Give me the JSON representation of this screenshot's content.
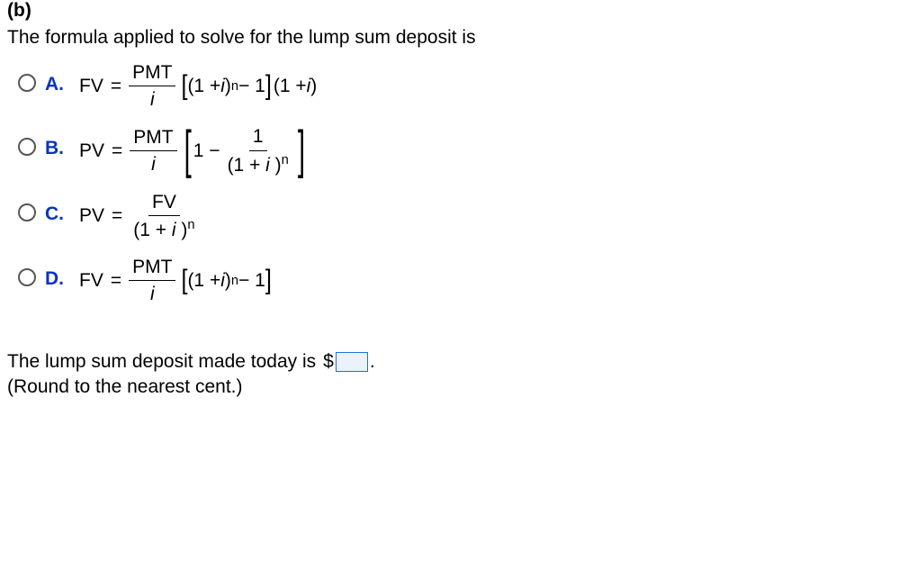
{
  "part_label": "(b)",
  "question": "The formula applied to solve for the lump sum deposit is",
  "options": {
    "A": {
      "letter": "A.",
      "lhs": "FV",
      "eq": "=",
      "frac_num": "PMT",
      "frac_den": "i",
      "inner_open": "(1 + ",
      "inner_i": "i ",
      "inner_close": ")",
      "exp": "n",
      "minus1": " − 1",
      "trail_open": "(1 + ",
      "trail_i": "i ",
      "trail_close": ")"
    },
    "B": {
      "letter": "B.",
      "lhs": "PV",
      "eq": "=",
      "frac_num": "PMT",
      "frac_den": "i",
      "one_minus": "1 − ",
      "inner_num": "1",
      "inner_den_open": "(1 + ",
      "inner_den_i": "i ",
      "inner_den_close": ")",
      "exp": "n"
    },
    "C": {
      "letter": "C.",
      "lhs": "PV",
      "eq": "=",
      "frac_num": "FV",
      "frac_den_open": "(1 + ",
      "frac_den_i": "i ",
      "frac_den_close": ")",
      "exp": "n"
    },
    "D": {
      "letter": "D.",
      "lhs": "FV",
      "eq": "=",
      "frac_num": "PMT",
      "frac_den": "i",
      "inner_open": "(1 + ",
      "inner_i": "i ",
      "inner_close": ")",
      "exp": "n",
      "minus1": " − 1"
    }
  },
  "answer_prefix": "The lump sum deposit made today is",
  "dollar": "$",
  "period": ".",
  "round_note": "(Round to the nearest cent.)",
  "colors": {
    "letter_color": "#0a34bf",
    "input_border": "#1e6fd6",
    "input_bg": "#eaf2fb",
    "radio_border": "#565656"
  },
  "typography": {
    "base_fontsize": 21,
    "letter_weight": "bold"
  }
}
